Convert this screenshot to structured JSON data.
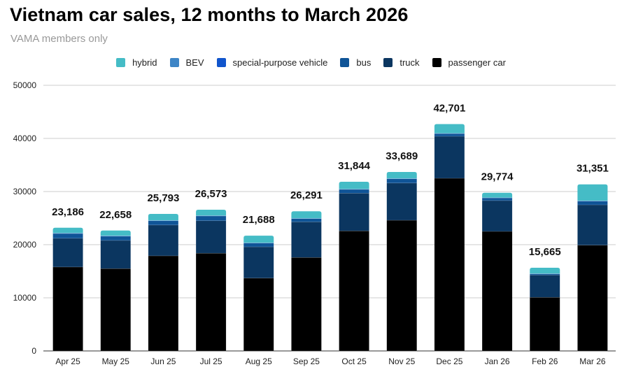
{
  "chart_data": {
    "type": "bar",
    "stacked": true,
    "title": "Vietnam car sales, 12 months to March 2026",
    "subtitle": "VAMA members only",
    "xlabel": "",
    "ylabel": "",
    "ylim": [
      0,
      50000
    ],
    "yticks": [
      0,
      10000,
      20000,
      30000,
      40000,
      50000
    ],
    "grid": true,
    "legend_position": "top-center",
    "categories": [
      "Apr 25",
      "May 25",
      "Jun 25",
      "Jul 25",
      "Aug 25",
      "Sep 25",
      "Oct 25",
      "Nov 25",
      "Dec 25",
      "Jan 26",
      "Feb 26",
      "Mar 26"
    ],
    "totals": [
      23186,
      22658,
      25793,
      26573,
      21688,
      26291,
      31844,
      33689,
      42701,
      29774,
      15665,
      31351
    ],
    "total_labels": [
      "23,186",
      "22,658",
      "25,793",
      "26,573",
      "21,688",
      "26,291",
      "31,844",
      "33,689",
      "42,701",
      "29,774",
      "15,665",
      "31,351"
    ],
    "series": [
      {
        "name": "passenger car",
        "color": "#000000",
        "values": [
          15800,
          15500,
          17900,
          18400,
          13700,
          17600,
          22600,
          24600,
          32500,
          22500,
          10100,
          19900
        ]
      },
      {
        "name": "truck",
        "color": "#0b3660",
        "values": [
          5400,
          5300,
          5800,
          6100,
          5900,
          6700,
          7100,
          7000,
          7900,
          5800,
          4200,
          7600
        ]
      },
      {
        "name": "bus",
        "color": "#0f5497",
        "values": [
          900,
          800,
          800,
          900,
          700,
          600,
          700,
          800,
          500,
          500,
          200,
          700
        ]
      },
      {
        "name": "special-purpose vehicle",
        "color": "#1155cc",
        "values": [
          50,
          40,
          40,
          40,
          40,
          40,
          40,
          40,
          40,
          40,
          30,
          40
        ]
      },
      {
        "name": "BEV",
        "color": "#3d85c6",
        "values": [
          30,
          30,
          30,
          30,
          30,
          30,
          30,
          30,
          30,
          30,
          20,
          30
        ]
      },
      {
        "name": "hybrid",
        "color": "#45bcc6",
        "values": [
          1006,
          988,
          1223,
          1103,
          1318,
          1321,
          1374,
          1219,
          1731,
          904,
          1115,
          3081
        ]
      }
    ],
    "legend_order": [
      "hybrid",
      "BEV",
      "special-purpose vehicle",
      "bus",
      "truck",
      "passenger car"
    ]
  }
}
